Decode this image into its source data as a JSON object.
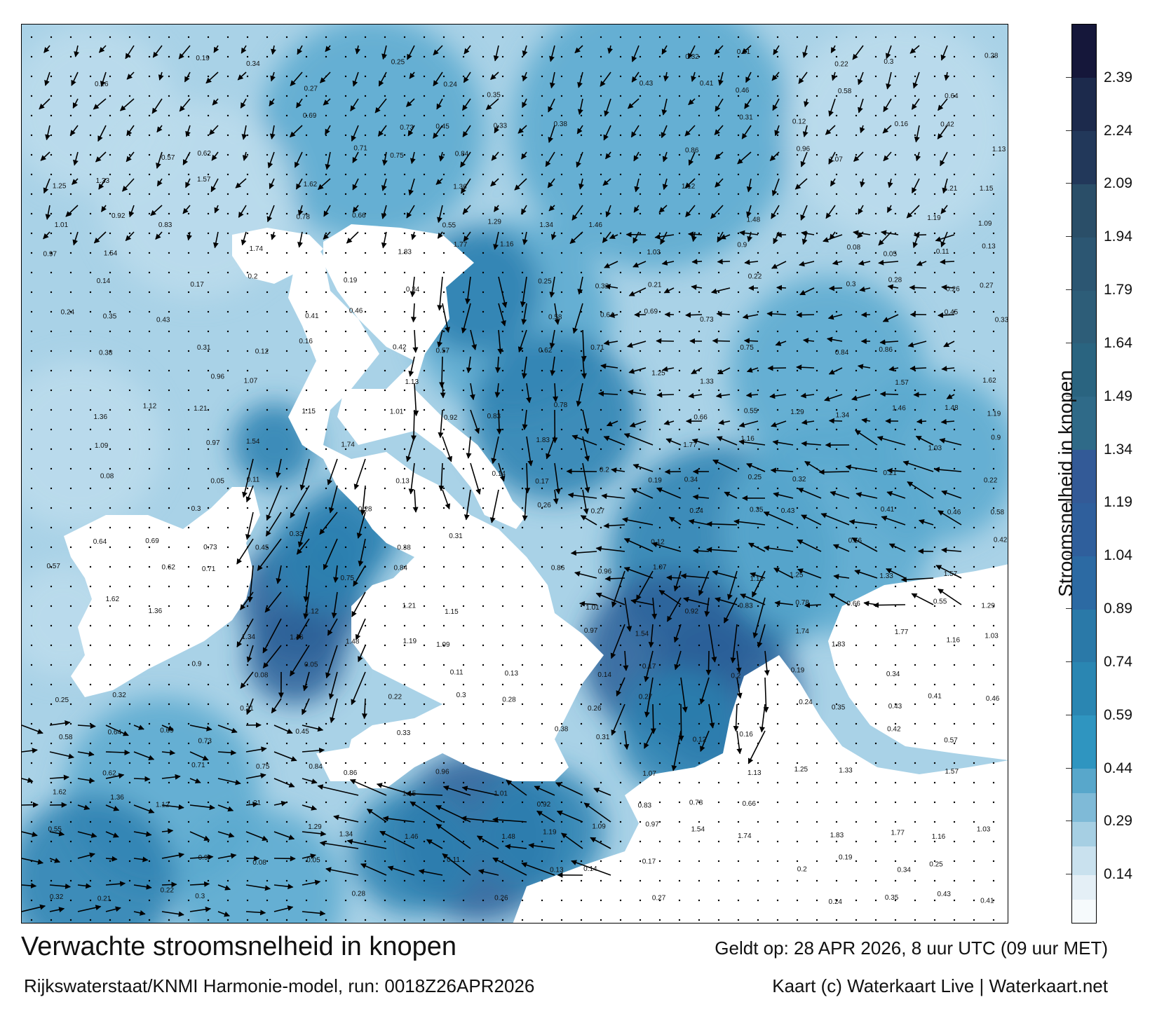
{
  "title": "Verwachte stroomsnelheid in knopen",
  "valid_time": "Geldt op: 28 APR 2026, 8 uur UTC (09 uur MET)",
  "model_run": "Rijkswaterstaat/KNMI Harmonie-model, run: 0018Z26APR2026",
  "credit": "Kaart (c) Waterkaart Live | Waterkaart.net",
  "colorbar": {
    "title": "Stroomsnelheid in knopen",
    "ticks": [
      "0.14",
      "0.29",
      "0.44",
      "0.59",
      "0.74",
      "0.89",
      "1.04",
      "1.19",
      "1.34",
      "1.49",
      "1.64",
      "1.79",
      "1.94",
      "2.09",
      "2.24",
      "2.39"
    ],
    "range": [
      0,
      2.54
    ],
    "bands": [
      {
        "from": 0.0,
        "to": 0.07,
        "color": "#f6fafc"
      },
      {
        "from": 0.07,
        "to": 0.14,
        "color": "#e4eff6"
      },
      {
        "from": 0.14,
        "to": 0.22,
        "color": "#c9e1ee"
      },
      {
        "from": 0.22,
        "to": 0.29,
        "color": "#a6cfe3"
      },
      {
        "from": 0.29,
        "to": 0.37,
        "color": "#7fbad7"
      },
      {
        "from": 0.37,
        "to": 0.44,
        "color": "#58a7cb"
      },
      {
        "from": 0.44,
        "to": 0.59,
        "color": "#2f95c0"
      },
      {
        "from": 0.59,
        "to": 0.74,
        "color": "#2a86b2"
      },
      {
        "from": 0.74,
        "to": 0.89,
        "color": "#2a79a8"
      },
      {
        "from": 0.89,
        "to": 1.04,
        "color": "#2c6aa3"
      },
      {
        "from": 1.04,
        "to": 1.19,
        "color": "#2f5f9c"
      },
      {
        "from": 1.19,
        "to": 1.34,
        "color": "#335a97"
      },
      {
        "from": 1.34,
        "to": 1.49,
        "color": "#2f6a88"
      },
      {
        "from": 1.49,
        "to": 1.64,
        "color": "#2a6480"
      },
      {
        "from": 1.64,
        "to": 1.79,
        "color": "#2d5d78"
      },
      {
        "from": 1.79,
        "to": 1.94,
        "color": "#2c5672"
      },
      {
        "from": 1.94,
        "to": 2.09,
        "color": "#2a4e68"
      },
      {
        "from": 2.09,
        "to": 2.24,
        "color": "#22385a"
      },
      {
        "from": 2.24,
        "to": 2.39,
        "color": "#1c2a4c"
      },
      {
        "from": 2.39,
        "to": 2.54,
        "color": "#15173a"
      }
    ]
  },
  "map": {
    "water_colors": {
      "light": "#bcdcec",
      "mid": "#5aa9cf",
      "deep": "#2b80b0",
      "strong": "#2a5f98"
    },
    "land_color": "#ffffff",
    "speed_labels": [
      "0.19",
      "0.34",
      "0.25",
      "0.32",
      "0.21",
      "0.22",
      "0.3",
      "0.28",
      "0.26",
      "0.27",
      "0.24",
      "0.35",
      "0.43",
      "0.41",
      "0.46",
      "0.58",
      "0.64",
      "0.69",
      "0.73",
      "0.45",
      "0.33",
      "0.38",
      "0.31",
      "0.12",
      "0.16",
      "0.42",
      "0.57",
      "0.62",
      "0.71",
      "0.75",
      "0.84",
      "0.86",
      "0.96",
      "1.07",
      "1.13",
      "1.25",
      "1.33",
      "1.57",
      "1.62",
      "1.36",
      "1.12",
      "1.21",
      "1.15",
      "1.01",
      "0.92",
      "0.83",
      "0.78",
      "0.66",
      "0.55",
      "1.29",
      "1.34",
      "1.46",
      "1.48",
      "1.19",
      "1.09",
      "0.97",
      "1.54",
      "1.74",
      "1.83",
      "1.77",
      "1.16",
      "1.03",
      "0.9",
      "0.08",
      "0.05",
      "0.11",
      "0.13",
      "0.14",
      "0.17",
      "0.2"
    ]
  }
}
